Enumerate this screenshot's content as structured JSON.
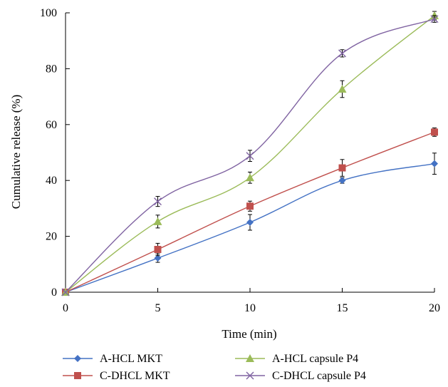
{
  "chart_data": {
    "type": "line",
    "title": "",
    "xlabel": "Time (min)",
    "ylabel": "Cumulative release (%)",
    "xlim": [
      0,
      20
    ],
    "ylim": [
      0,
      100
    ],
    "x_ticks": [
      0,
      5,
      10,
      15,
      20
    ],
    "y_ticks": [
      0,
      20,
      40,
      60,
      80,
      100
    ],
    "x": [
      0,
      5,
      10,
      15,
      20
    ],
    "grid": false,
    "legend_position": "bottom",
    "series": [
      {
        "name": "A-HCL MKT",
        "color": "#4472C4",
        "marker": "diamond",
        "values": [
          0,
          12.2,
          25.0,
          40.0,
          46.0
        ],
        "errors": [
          0,
          1.5,
          2.8,
          1.0,
          3.8
        ]
      },
      {
        "name": "C-DHCL MKT",
        "color": "#C0504D",
        "marker": "square",
        "values": [
          0,
          15.3,
          30.8,
          44.5,
          57.3
        ],
        "errors": [
          0,
          2.2,
          1.8,
          3.0,
          1.5
        ]
      },
      {
        "name": "A-HCL capsule P4",
        "color": "#9BBB59",
        "marker": "triangle",
        "values": [
          0,
          25.3,
          41.0,
          72.7,
          99.0
        ],
        "errors": [
          0,
          2.3,
          2.0,
          3.0,
          1.5
        ]
      },
      {
        "name": "C-DHCL capsule P4",
        "color": "#8064A2",
        "marker": "x",
        "values": [
          0,
          32.5,
          48.8,
          85.5,
          97.8
        ],
        "errors": [
          0,
          1.8,
          2.0,
          1.3,
          1.2
        ]
      }
    ]
  }
}
